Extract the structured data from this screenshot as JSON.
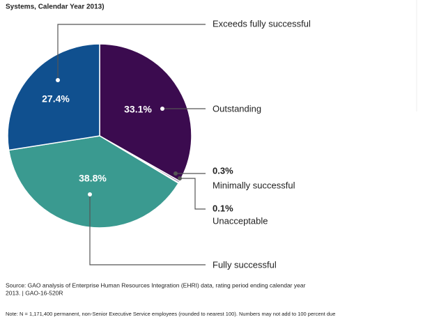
{
  "chart_data": {
    "type": "pie",
    "subtitle": "Systems, Calendar Year 2013)",
    "categories": [
      "Outstanding",
      "Minimally successful",
      "Unacceptable",
      "Fully successful",
      "Exceeds fully successful"
    ],
    "values": [
      33.1,
      0.3,
      0.1,
      38.8,
      27.4
    ],
    "value_labels": [
      "33.1%",
      "0.3%",
      "0.1%",
      "38.8%",
      "27.4%"
    ],
    "colors": [
      "#3b0b4f",
      "#8a6a9a",
      "#c9c9c9",
      "#3a9a90",
      "#10508f"
    ],
    "source": [
      "Source: GAO analysis of Enterprise Human Resources Integration (EHRI) data, rating period ending calendar year",
      "2013. | GAO-16-520R"
    ],
    "note": "Note: N = 1,171,400 permanent, non-Senior Executive Service employees (rounded to nearest 100). Numbers may not add to 100 percent due"
  }
}
